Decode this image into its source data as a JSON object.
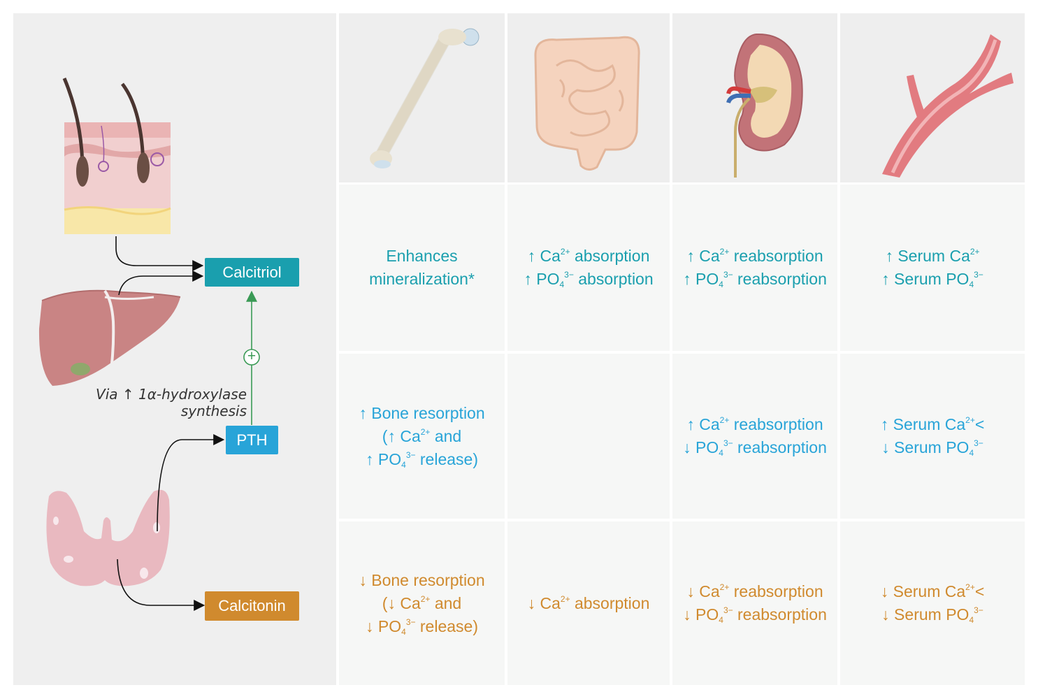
{
  "hormones": {
    "calcitriol": "Calcitriol",
    "pth": "PTH",
    "calcitonin": "Calcitonin",
    "plus_symbol": "+",
    "note_line1": "Via ↑ 1α-hydroxylase",
    "note_line2": "synthesis"
  },
  "organs": [
    "bone-icon",
    "intestine-icon",
    "kidney-icon",
    "blood-vessel-icon",
    "skin-icon",
    "liver-icon",
    "thyroid-icon"
  ],
  "colors": {
    "calcitriol": "#1a9fae",
    "pth": "#28a4d8",
    "calcitonin": "#d08a2e",
    "stimulation_arrow": "#3a9a55"
  },
  "rows": {
    "calcitriol": {
      "bone": [
        {
          "t": "Enhances"
        },
        {
          "t": "mineralization*"
        }
      ],
      "intestine": [
        {
          "pre": "↑ Ca",
          "sup": "2+",
          "post": " absorption"
        },
        {
          "pre": "↑ PO",
          "sub": "4",
          "sup": "3−",
          "post": " absorption"
        }
      ],
      "kidney": [
        {
          "pre": "↑ Ca",
          "sup": "2+",
          "post": " reabsorption"
        },
        {
          "pre": "↑ PO",
          "sub": "4",
          "sup": "3−",
          "post": " reabsorption"
        }
      ],
      "serum": [
        {
          "pre": "↑ Serum Ca",
          "sup": "2+",
          "post": ""
        },
        {
          "pre": "↑ Serum PO",
          "sub": "4",
          "sup": "3−",
          "post": ""
        }
      ]
    },
    "pth": {
      "bone": [
        {
          "t": "↑ Bone resorption"
        },
        {
          "pre": "(↑ Ca",
          "sup": "2+",
          "post": " and"
        },
        {
          "pre": "↑ PO",
          "sub": "4",
          "sup": "3−",
          "post": " release)"
        }
      ],
      "intestine": [],
      "kidney": [
        {
          "pre": "↑ Ca",
          "sup": "2+",
          "post": " reabsorption"
        },
        {
          "pre": "↓ PO",
          "sub": "4",
          "sup": "3−",
          "post": " reabsorption"
        }
      ],
      "serum": [
        {
          "pre": "↑ Serum Ca",
          "sup": "2+",
          "post": "<"
        },
        {
          "pre": "↓ Serum PO",
          "sub": "4",
          "sup": "3−",
          "post": ""
        }
      ]
    },
    "calcitonin": {
      "bone": [
        {
          "t": "↓ Bone resorption"
        },
        {
          "pre": "(↓ Ca",
          "sup": "2+",
          "post": " and"
        },
        {
          "pre": "↓ PO",
          "sub": "4",
          "sup": "3−",
          "post": " release)"
        }
      ],
      "intestine": [
        {
          "pre": "↓ Ca",
          "sup": "2+",
          "post": " absorption"
        }
      ],
      "kidney": [
        {
          "pre": "↓ Ca",
          "sup": "2+",
          "post": " reabsorption"
        },
        {
          "pre": "↓ PO",
          "sub": "4",
          "sup": "3−",
          "post": " reabsorption"
        }
      ],
      "serum": [
        {
          "pre": "↓ Serum Ca",
          "sup": "2+",
          "post": "<"
        },
        {
          "pre": "↓ Serum PO",
          "sub": "4",
          "sup": "3−",
          "post": ""
        }
      ]
    }
  }
}
